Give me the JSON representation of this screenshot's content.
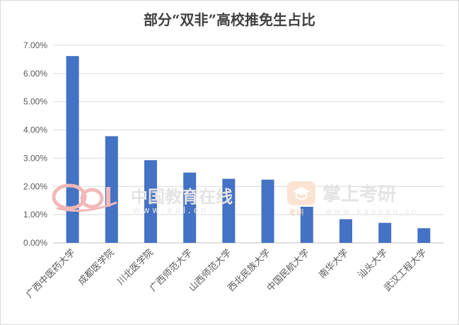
{
  "chart_data": {
    "type": "bar",
    "title": "部分“双非”高校推免生占比",
    "xlabel": "",
    "ylabel": "",
    "categories": [
      "广西中医药大学",
      "成都医学院",
      "川北医学院",
      "广西师范大学",
      "山西师范大学",
      "西北民族大学",
      "中国民航大学",
      "南华大学",
      "汕头大学",
      "武汉工程大学"
    ],
    "values": [
      6.62,
      3.78,
      2.93,
      2.49,
      2.27,
      2.24,
      1.28,
      0.84,
      0.71,
      0.52
    ],
    "ylim": [
      0,
      7
    ],
    "yticks": [
      0,
      1,
      2,
      3,
      4,
      5,
      6,
      7
    ],
    "ytick_labels": [
      "0.00%",
      "1.00%",
      "2.00%",
      "3.00%",
      "4.00%",
      "5.00%",
      "6.00%",
      "7.00%"
    ],
    "grid": true,
    "legend": "none",
    "bar_color": "#4472C4"
  },
  "watermarks": {
    "eol_name": "中国教育在线",
    "eol_url": "w w w . e o l . c n",
    "kaoyan_name": "掌上考研",
    "kaoyan_url": "w w w . k a o y a n . c n",
    "kaoyan_badge": "考研"
  }
}
